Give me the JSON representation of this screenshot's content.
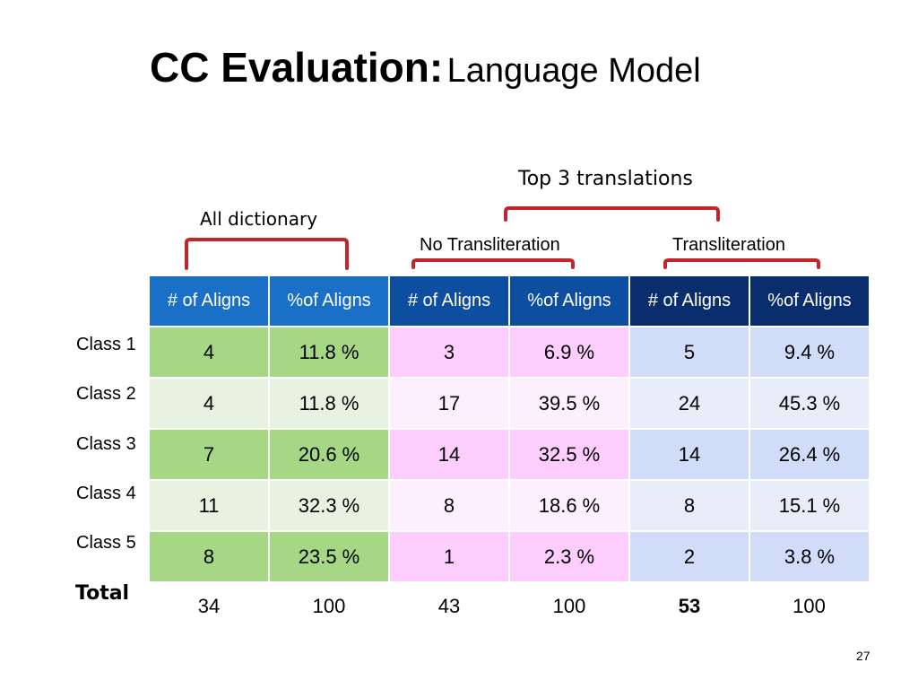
{
  "slide": {
    "title_bold": "CC Evaluation:",
    "title_normal": "Language Model",
    "page_number": "27"
  },
  "groups": {
    "top3": "Top 3 translations",
    "all_dictionary": "All dictionary",
    "no_transliteration": "No Transliteration",
    "transliteration": "Transliteration"
  },
  "bracket_color": "#c0272d",
  "table": {
    "headers": [
      "# of Aligns",
      "%of Aligns",
      "# of Aligns",
      "%of Aligns",
      "# of Aligns",
      "%of Aligns"
    ],
    "rows": [
      {
        "label": "Class 1",
        "cells": [
          "4",
          "11.8 %",
          "3",
          "6.9 %",
          "5",
          "9.4 %"
        ]
      },
      {
        "label": "Class 2",
        "cells": [
          "4",
          "11.8 %",
          "17",
          "39.5 %",
          "24",
          "45.3 %"
        ]
      },
      {
        "label": "Class 3",
        "cells": [
          "7",
          "20.6 %",
          "14",
          "32.5 %",
          "14",
          "26.4 %"
        ]
      },
      {
        "label": "Class 4",
        "cells": [
          "11",
          "32.3 %",
          "8",
          "18.6 %",
          "8",
          "15.1 %"
        ]
      },
      {
        "label": "Class 5",
        "cells": [
          "8",
          "23.5 %",
          "1",
          "2.3 %",
          "2",
          "3.8 %"
        ]
      }
    ],
    "total": {
      "label": "Total",
      "cells": [
        "34",
        "100",
        "43",
        "100",
        "53",
        "100"
      ]
    }
  }
}
